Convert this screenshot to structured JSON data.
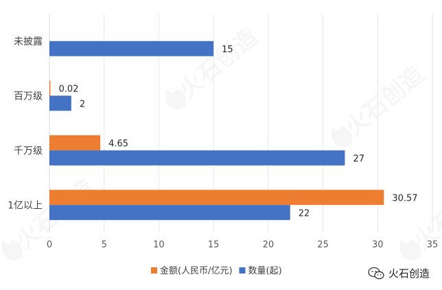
{
  "chart_data": {
    "type": "bar",
    "orientation": "horizontal",
    "categories": [
      "未披露",
      "百万级",
      "千万级",
      "1亿以上"
    ],
    "series": [
      {
        "name": "金额(人民币/亿元)",
        "values": [
          null,
          0.02,
          4.65,
          30.57
        ],
        "labels": [
          "",
          "0.02",
          "4.65",
          "30.57"
        ],
        "color": "#ED7D31"
      },
      {
        "name": "数量(起)",
        "values": [
          15,
          2,
          27,
          22
        ],
        "labels": [
          "15",
          "2",
          "27",
          "22"
        ],
        "color": "#4472C4"
      }
    ],
    "xlim": [
      0,
      35
    ],
    "xticks": [
      "0",
      "5",
      "10",
      "15",
      "20",
      "25",
      "30",
      "35"
    ],
    "xgrid": true,
    "legend_position": "bottom"
  },
  "watermark": {
    "text": "火石创造"
  },
  "credit": {
    "text": "火石创造",
    "icon": "wechat-icon"
  }
}
